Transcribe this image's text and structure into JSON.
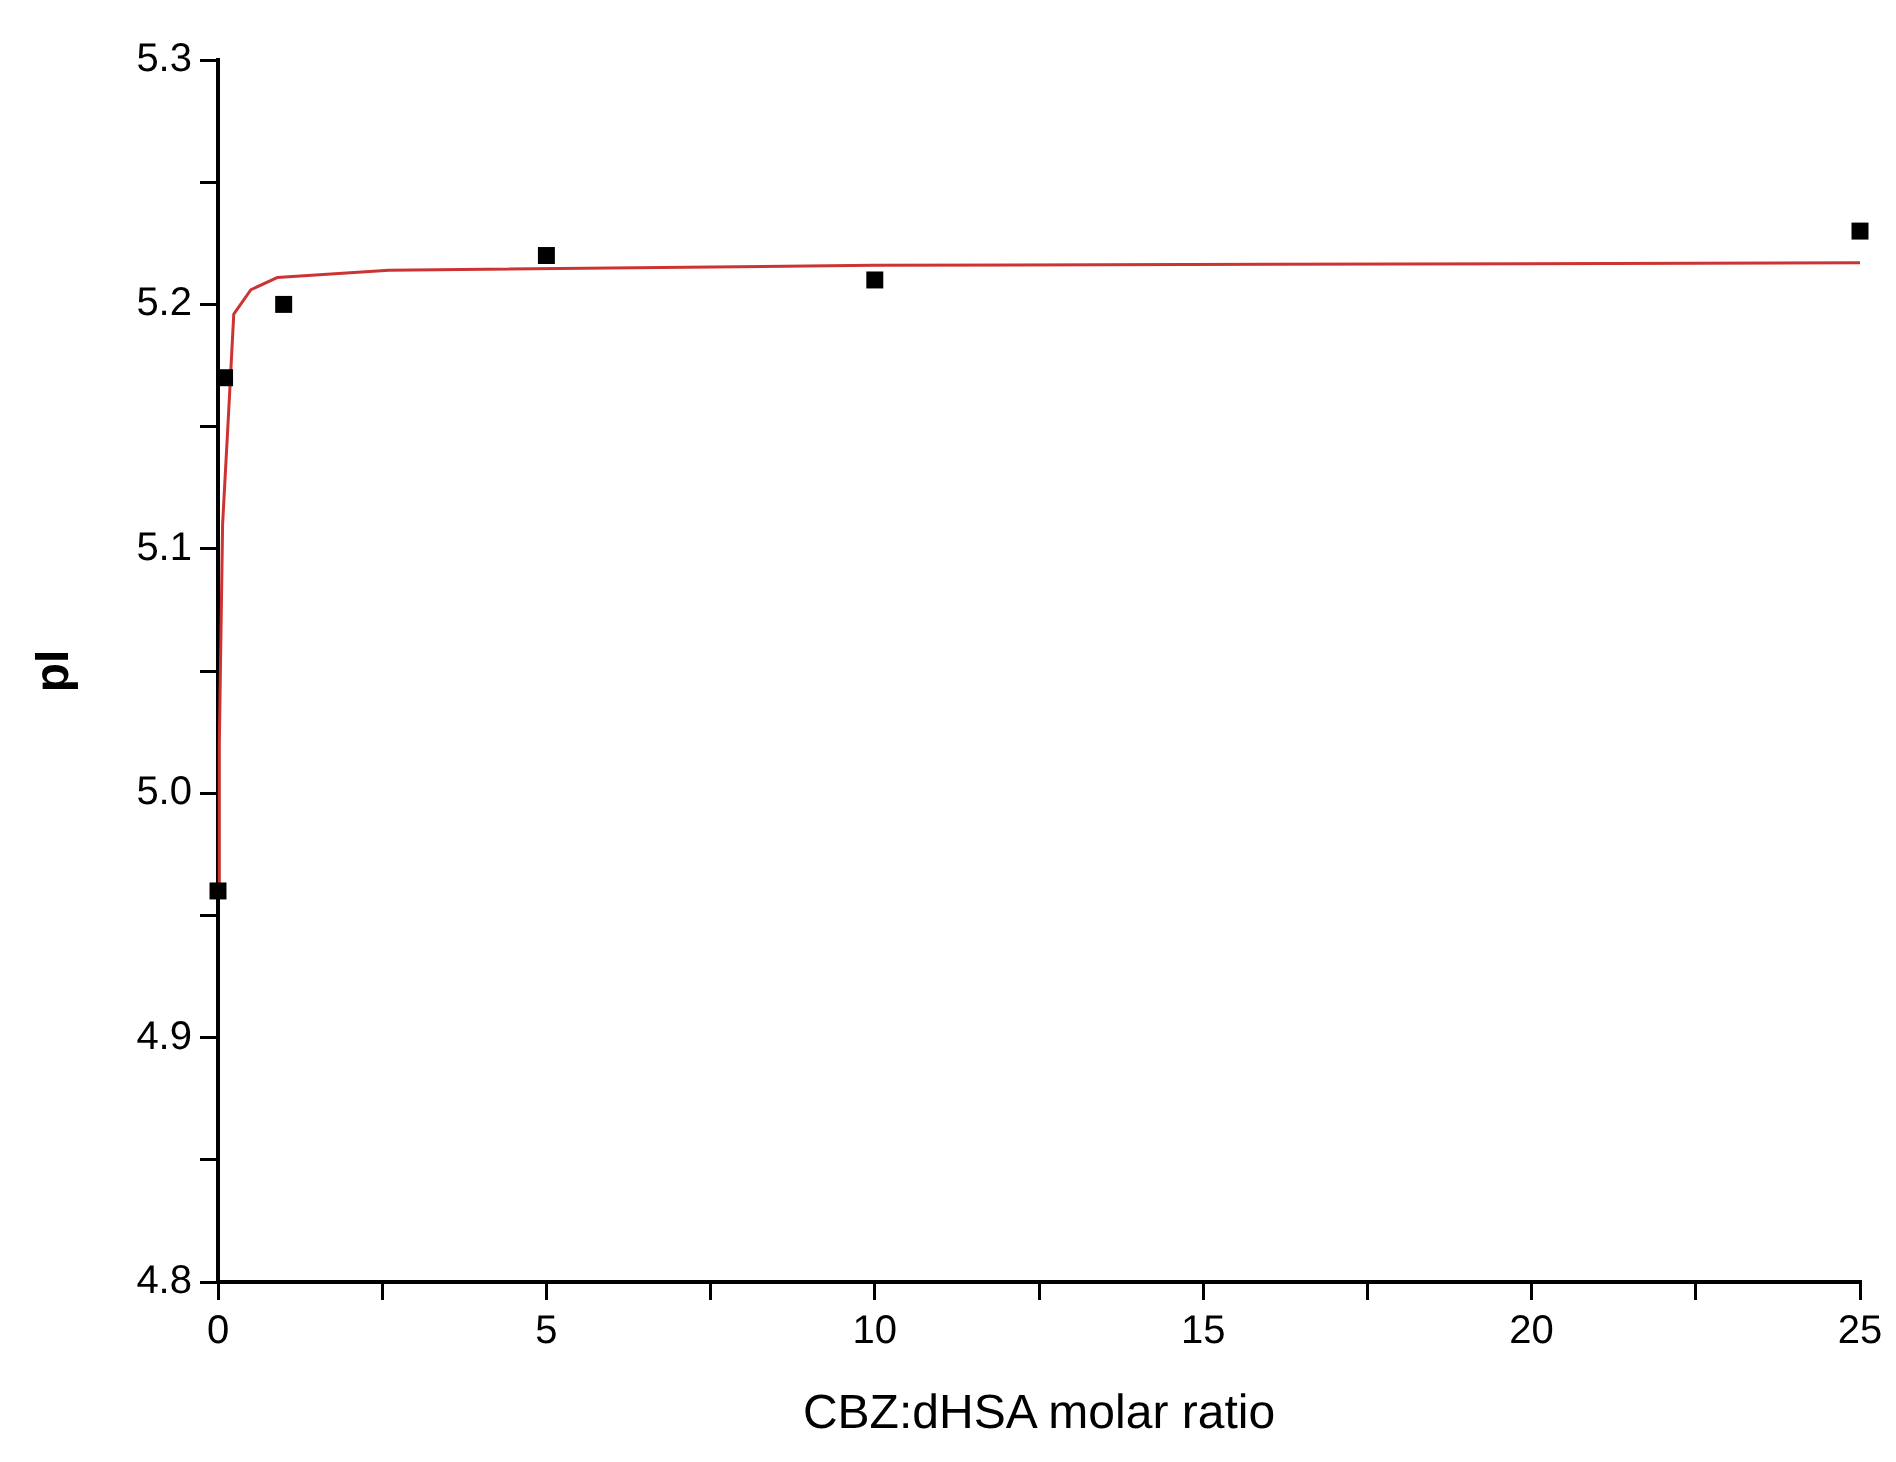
{
  "chart_data": {
    "type": "scatter",
    "xlabel": "CBZ:dHSA molar ratio",
    "ylabel": "pI",
    "xlim": [
      0,
      25
    ],
    "xticks": [
      0,
      {
        "value": 2.5,
        "label": null
      },
      5,
      {
        "value": 7.5,
        "label": null
      },
      10,
      {
        "value": 12.5,
        "label": null
      },
      15,
      {
        "value": 17.5,
        "label": null
      },
      20,
      {
        "value": 22.5,
        "label": null
      },
      25
    ],
    "ylim": [
      4.8,
      5.3
    ],
    "yticks": [
      4.8,
      {
        "value": 4.85,
        "label": null
      },
      4.9,
      {
        "value": 4.95,
        "label": null
      },
      {
        "value": 5.0,
        "label": "5.0"
      },
      {
        "value": 5.05,
        "label": null
      },
      5.1,
      {
        "value": 5.15,
        "label": null
      },
      5.2,
      {
        "value": 5.25,
        "label": null
      },
      5.3
    ],
    "grid": false,
    "legend": false,
    "series": [
      {
        "type": "scatter",
        "color": "#000000",
        "marker": "square",
        "x": [
          0,
          0.1,
          1,
          5,
          10,
          25
        ],
        "values": [
          4.96,
          5.17,
          5.2,
          5.22,
          5.21,
          5.23
        ]
      },
      {
        "type": "line",
        "color": "#cc3333",
        "marker": "none",
        "line_style": "solid",
        "x": [
          0,
          0.02,
          0.07,
          0.17,
          0.24,
          0.5,
          0.9,
          2.6,
          10,
          25
        ],
        "values": [
          4.962,
          5.02,
          5.11,
          5.16,
          5.196,
          5.206,
          5.211,
          5.214,
          5.216,
          5.217
        ]
      }
    ]
  }
}
